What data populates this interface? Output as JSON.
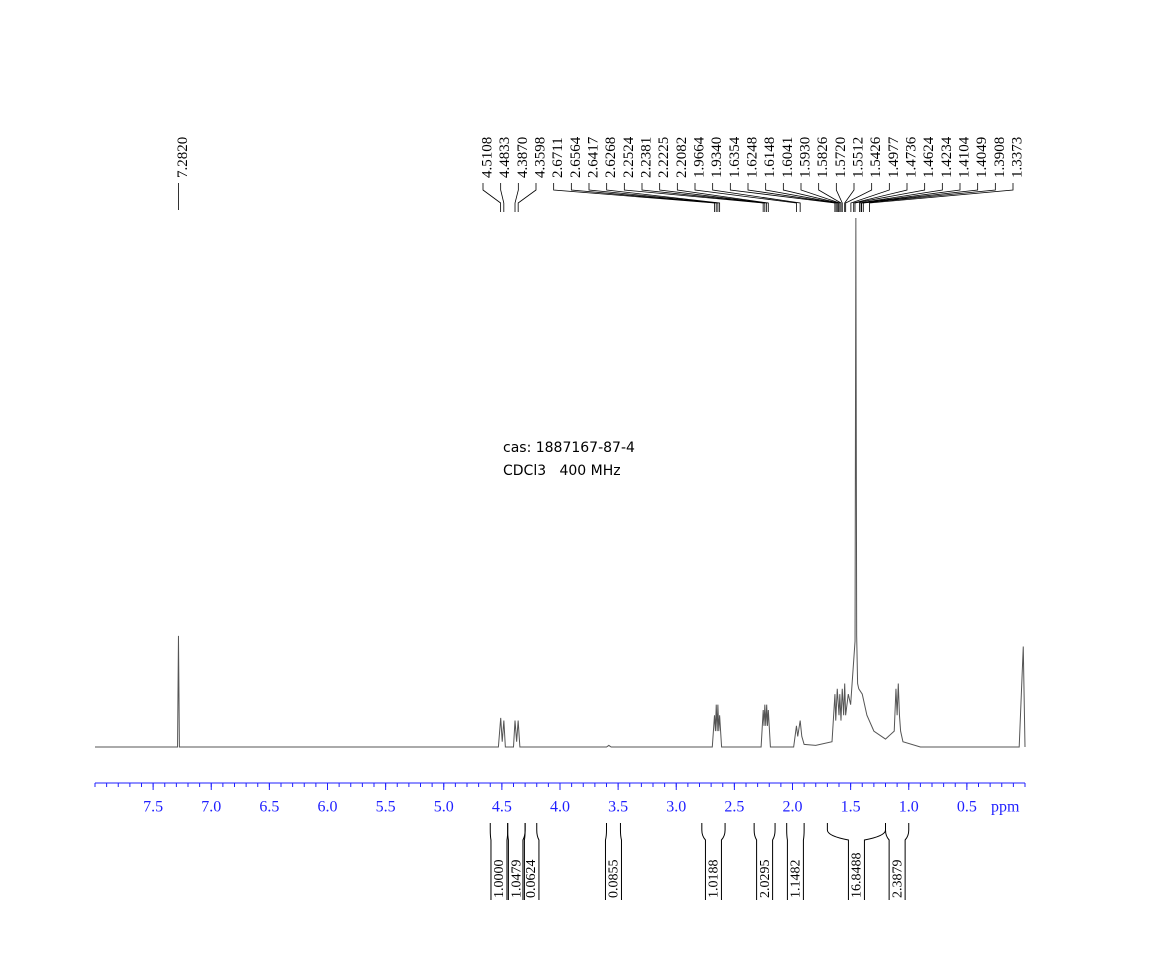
{
  "chart_data": {
    "type": "nmr",
    "annotations": [
      "cas: 1887167-87-4",
      "CDCl3   400 MHz"
    ],
    "x_label": "ppm",
    "xlim": [
      8.0,
      0.0
    ],
    "xticks": [
      7.5,
      {
        "value": 7.0,
        "label": "7.0"
      },
      6.5,
      {
        "value": 6.0,
        "label": "6.0"
      },
      5.5,
      {
        "value": 5.0,
        "label": "5.0"
      },
      4.5,
      {
        "value": 4.0,
        "label": "4.0"
      },
      3.5,
      {
        "value": 3.0,
        "label": "3.0"
      },
      2.5,
      {
        "value": 2.0,
        "label": "2.0"
      },
      1.5,
      {
        "value": 1.0,
        "label": "1.0"
      },
      0.5
    ],
    "minor_tick_step": 0.1,
    "axis_color": "#1f1fff",
    "line_color": "#555555",
    "ylim": [
      0,
      100
    ],
    "spectrum": {
      "x": [
        8.0,
        7.29,
        7.282,
        7.274,
        4.53,
        4.51,
        4.497,
        4.483,
        4.47,
        4.4,
        4.387,
        4.373,
        4.36,
        4.345,
        3.6,
        3.58,
        3.56,
        2.69,
        2.671,
        2.663,
        2.656,
        2.648,
        2.642,
        2.634,
        2.627,
        2.61,
        2.27,
        2.252,
        2.245,
        2.238,
        2.23,
        2.222,
        2.215,
        2.208,
        2.19,
        1.99,
        1.966,
        1.955,
        1.934,
        1.92,
        1.9,
        1.8,
        1.66,
        1.635,
        1.628,
        1.615,
        1.6,
        1.593,
        1.583,
        1.572,
        1.56,
        1.551,
        1.543,
        1.52,
        1.5,
        1.462,
        1.455,
        1.448,
        1.44,
        1.43,
        1.4,
        1.36,
        1.3,
        1.2,
        1.125,
        1.11,
        1.1,
        1.09,
        1.08,
        1.07,
        1.05,
        0.9,
        0.05,
        0.015,
        0.0
      ],
      "y": [
        0,
        0,
        21,
        0,
        0,
        5.5,
        1,
        5,
        0,
        0,
        5,
        1,
        5,
        0,
        0,
        0.3,
        0,
        0,
        6,
        3,
        8,
        3,
        8,
        3,
        6,
        0,
        0,
        7,
        4,
        8,
        4,
        8,
        4,
        7,
        0,
        0,
        4,
        2,
        5,
        2,
        0.5,
        0.3,
        1,
        10,
        5,
        11,
        6,
        10,
        5,
        11,
        6,
        12,
        6,
        10,
        8,
        20,
        100,
        21,
        12,
        11,
        10,
        6,
        3,
        1.5,
        3,
        11,
        6,
        12,
        6,
        3,
        1,
        0,
        0,
        19,
        0
      ]
    },
    "peaks": [
      {
        "value": 7.282,
        "label": "7.2820"
      },
      {
        "value": 4.5108,
        "label": "4.5108"
      },
      {
        "value": 4.4833,
        "label": "4.4833"
      },
      {
        "value": 4.387,
        "label": "4.3870"
      },
      {
        "value": 4.3598,
        "label": "4.3598"
      },
      {
        "value": 2.6711,
        "label": "2.6711"
      },
      {
        "value": 2.6564,
        "label": "2.6564"
      },
      {
        "value": 2.6417,
        "label": "2.6417"
      },
      {
        "value": 2.6268,
        "label": "2.6268"
      },
      {
        "value": 2.2524,
        "label": "2.2524"
      },
      {
        "value": 2.2381,
        "label": "2.2381"
      },
      {
        "value": 2.2225,
        "label": "2.2225"
      },
      {
        "value": 2.2082,
        "label": "2.2082"
      },
      {
        "value": 1.9664,
        "label": "1.9664"
      },
      {
        "value": 1.934,
        "label": "1.9340"
      },
      {
        "value": 1.6354,
        "label": "1.6354"
      },
      {
        "value": 1.6248,
        "label": "1.6248"
      },
      {
        "value": 1.6148,
        "label": "1.6148"
      },
      {
        "value": 1.6041,
        "label": "1.6041"
      },
      {
        "value": 1.593,
        "label": "1.5930"
      },
      {
        "value": 1.5826,
        "label": "1.5826"
      },
      {
        "value": 1.572,
        "label": "1.5720"
      },
      {
        "value": 1.5512,
        "label": "1.5512"
      },
      {
        "value": 1.5426,
        "label": "1.5426"
      },
      {
        "value": 1.4977,
        "label": "1.4977"
      },
      {
        "value": 1.4736,
        "label": "1.4736"
      },
      {
        "value": 1.4624,
        "label": "1.4624"
      },
      {
        "value": 1.4234,
        "label": "1.4234"
      },
      {
        "value": 1.4104,
        "label": "1.4104"
      },
      {
        "value": 1.4049,
        "label": "1.4049"
      },
      {
        "value": 1.3908,
        "label": "1.3908"
      },
      {
        "value": 1.3373,
        "label": "1.3373"
      }
    ],
    "integrals": [
      {
        "from": 4.6,
        "to": 4.45,
        "value": 1,
        "label": "1.0000"
      },
      {
        "from": 4.45,
        "to": 4.3,
        "value": 1.0479,
        "label": "1.0479"
      },
      {
        "from": 4.3,
        "to": 4.2,
        "value": 0.0624,
        "label": "0.0624"
      },
      {
        "from": 3.6,
        "to": 3.48,
        "value": 0.0855,
        "label": "0.0855"
      },
      {
        "from": 2.78,
        "to": 2.58,
        "value": 1.0188,
        "label": "1.0188"
      },
      {
        "from": 2.33,
        "to": 2.15,
        "value": 2.0295,
        "label": "2.0295"
      },
      {
        "from": 2.05,
        "to": 1.9,
        "value": 1.1482,
        "label": "1.1482"
      },
      {
        "from": 1.7,
        "to": 1.2,
        "value": 16.8488,
        "label": "16.8488"
      },
      {
        "from": 1.2,
        "to": 1.0,
        "value": 2.3879,
        "label": "2.3879"
      }
    ]
  }
}
